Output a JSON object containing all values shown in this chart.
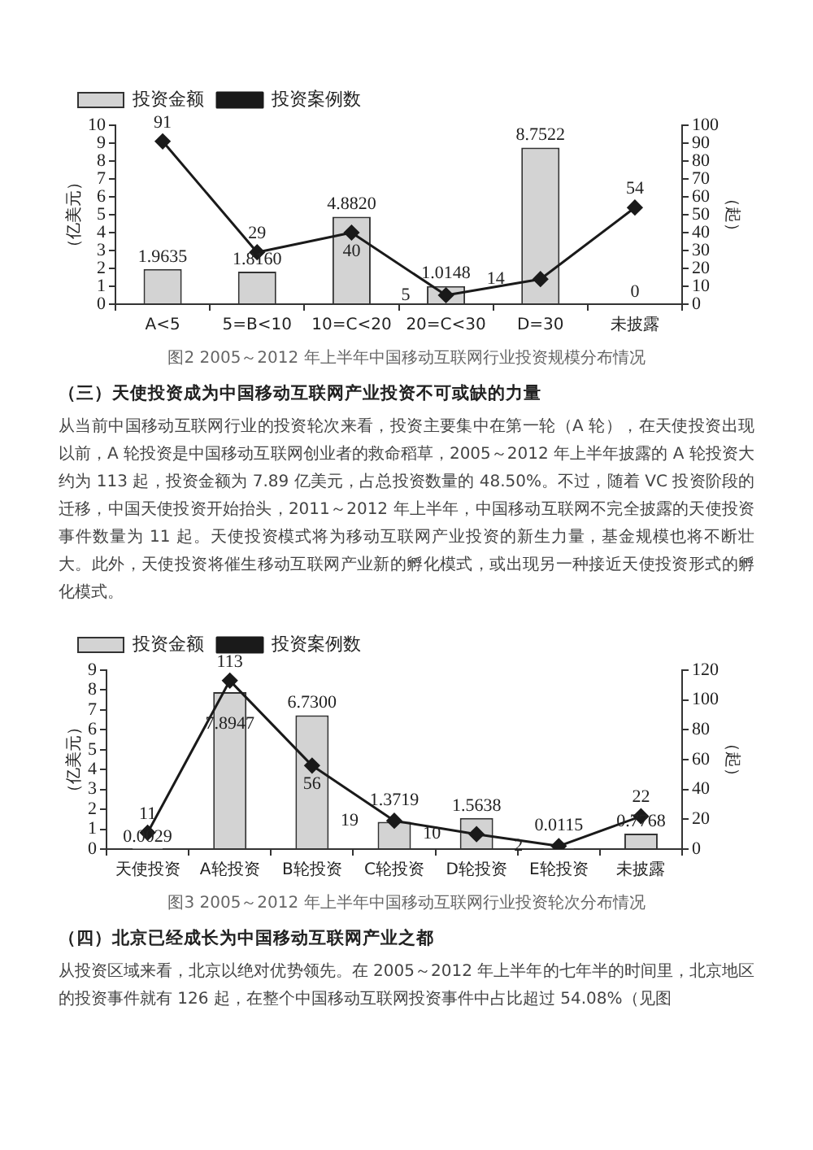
{
  "chart_data": [
    {
      "type": "bar",
      "title": "图2 2005～2012 年上半年中国移动互联网行业投资规模分布情况",
      "ylabel": "（亿美元）",
      "y2label": "（起）",
      "categories": [
        "A<5",
        "5=B<10",
        "10=C<20",
        "20=C<30",
        "D=30",
        "未披露"
      ],
      "series": [
        {
          "name": "投资金额",
          "color": "#d3d3d3",
          "values": [
            1.9635,
            1.816,
            4.882,
            1.0148,
            8.7522,
            0
          ],
          "value_labels": [
            "1.9635",
            "1.8160",
            "4.8820",
            "1.0148",
            "8.7522",
            "0"
          ]
        },
        {
          "name": "投资案例数",
          "type": "line",
          "axis": "y2",
          "color": "#1a1a1a",
          "values": [
            91,
            29,
            40,
            5,
            14,
            54
          ],
          "value_labels": [
            "91",
            "29",
            "40",
            "5",
            "14",
            "54"
          ]
        }
      ],
      "ylim": [
        0,
        10
      ],
      "yticks": [
        0,
        1,
        2,
        3,
        4,
        5,
        6,
        7,
        8,
        9,
        10
      ],
      "y2lim": [
        0,
        100
      ],
      "y2ticks": [
        0,
        10,
        20,
        30,
        40,
        50,
        60,
        70,
        80,
        90,
        100
      ],
      "legend": "top",
      "marker": "diamond",
      "line_style": "solid",
      "grid": false,
      "annotations": [
        "（三）天使投资成为中国移动互联网产业投资不可或缺的力量",
        "从当前中国移动互联网行业的投资轮次来看，投资主要集中在第一轮（A 轮），在天使投资出现以前，A 轮投资是中国移动互联网创业者的救命稻草，2005～2012 年上半年披露的 A 轮投资大约为 113 起，投资金额为 7.89 亿美元，占总投资数量的 48.50%。不过，随着 VC 投资阶段的迁移，中国天使投资开始抬头，2011～2012 年上半年，中国移动互联网不完全披露的天使投资事件数量为 11 起。天使投资模式将为移动互联网产业投资的新生力量，基金规模也将不断壮大。此外，天使投资将催生移动互联网产业新的孵化模式，或出现另一种接近天使投资形式的孵化模式。"
      ]
    },
    {
      "type": "bar",
      "title": "图3 2005～2012 年上半年中国移动互联网行业投资轮次分布情况",
      "ylabel": "（亿美元）",
      "y2label": "（起）",
      "categories": [
        "天使投资",
        "A轮投资",
        "B轮投资",
        "C轮投资",
        "D轮投资",
        "E轮投资",
        "未披露"
      ],
      "series": [
        {
          "name": "投资金额",
          "color": "#d3d3d3",
          "values": [
            0.0029,
            7.8947,
            6.73,
            1.3719,
            1.5638,
            0.0115,
            0.7768
          ],
          "value_labels": [
            "0.0029",
            "7.8947",
            "6.7300",
            "1.3719",
            "1.5638",
            "0.0115",
            "0.7768"
          ]
        },
        {
          "name": "投资案例数",
          "type": "line",
          "axis": "y2",
          "color": "#1a1a1a",
          "values": [
            11,
            113,
            56,
            19,
            10,
            2,
            22
          ],
          "value_labels": [
            "11",
            "113",
            "56",
            "19",
            "10",
            "2",
            "22"
          ]
        }
      ],
      "ylim": [
        0,
        9
      ],
      "yticks": [
        0,
        1,
        2,
        3,
        4,
        5,
        6,
        7,
        8,
        9
      ],
      "y2lim": [
        0,
        120
      ],
      "y2ticks": [
        0,
        20,
        40,
        60,
        80,
        100,
        120
      ],
      "legend": "top",
      "marker": "diamond",
      "line_style": "solid",
      "grid": false,
      "annotations": [
        "（四）北京已经成长为中国移动互联网产业之都",
        "从投资区域来看，北京以绝对优势领先。在 2005～2012 年上半年的七年半的时间里，北京地区的投资事件就有 126 起，在整个中国移动互联网投资事件中占比超过 54.08%（见图"
      ]
    }
  ]
}
